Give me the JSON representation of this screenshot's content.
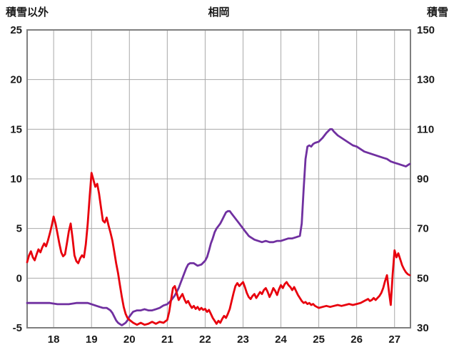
{
  "header": {
    "left_axis_title": "積雪以外",
    "title": "相岡",
    "right_axis_title": "積雪"
  },
  "chart_data": {
    "type": "line",
    "title": "相岡",
    "x_range": [
      17.3,
      27.42
    ],
    "x_ticks": [
      18,
      19,
      20,
      21,
      22,
      23,
      24,
      25,
      26,
      27
    ],
    "grid": true,
    "legend": "none",
    "left_axis": {
      "label": "積雪以外",
      "range": [
        -5,
        25
      ],
      "ticks": [
        25,
        20,
        15,
        10,
        5,
        0,
        -5
      ]
    },
    "right_axis": {
      "label": "積雪",
      "range": [
        30,
        150
      ],
      "ticks": [
        150,
        130,
        110,
        90,
        70,
        50,
        30
      ]
    },
    "colors": {
      "grid": "#a9a9a9",
      "border": "#7f7f7f",
      "text": "#1a1a1a"
    },
    "series": [
      {
        "name": "積雪",
        "axis": "right",
        "color": "#7030a0",
        "points": [
          [
            17.3,
            40
          ],
          [
            17.6,
            40
          ],
          [
            17.9,
            40
          ],
          [
            18.1,
            39.5
          ],
          [
            18.4,
            39.5
          ],
          [
            18.6,
            40
          ],
          [
            18.9,
            40
          ],
          [
            19.0,
            39.5
          ],
          [
            19.1,
            39
          ],
          [
            19.2,
            38.5
          ],
          [
            19.3,
            38
          ],
          [
            19.4,
            38
          ],
          [
            19.5,
            37
          ],
          [
            19.55,
            36
          ],
          [
            19.6,
            34.5
          ],
          [
            19.65,
            33
          ],
          [
            19.7,
            32
          ],
          [
            19.75,
            31.5
          ],
          [
            19.8,
            31
          ],
          [
            19.85,
            31.5
          ],
          [
            19.9,
            32
          ],
          [
            19.95,
            33
          ],
          [
            20.0,
            34.5
          ],
          [
            20.05,
            35.5
          ],
          [
            20.1,
            36.5
          ],
          [
            20.2,
            37
          ],
          [
            20.3,
            37
          ],
          [
            20.4,
            37.5
          ],
          [
            20.5,
            37
          ],
          [
            20.6,
            37
          ],
          [
            20.7,
            37.5
          ],
          [
            20.8,
            38
          ],
          [
            20.9,
            39
          ],
          [
            21.0,
            39.5
          ],
          [
            21.1,
            41
          ],
          [
            21.2,
            43
          ],
          [
            21.3,
            46
          ],
          [
            21.35,
            48
          ],
          [
            21.4,
            50
          ],
          [
            21.45,
            52
          ],
          [
            21.5,
            54
          ],
          [
            21.55,
            55.5
          ],
          [
            21.6,
            56
          ],
          [
            21.7,
            56
          ],
          [
            21.8,
            55
          ],
          [
            21.9,
            55.5
          ],
          [
            22.0,
            57
          ],
          [
            22.05,
            58.5
          ],
          [
            22.1,
            61
          ],
          [
            22.15,
            64
          ],
          [
            22.2,
            66
          ],
          [
            22.25,
            68.5
          ],
          [
            22.3,
            70
          ],
          [
            22.35,
            71
          ],
          [
            22.4,
            72
          ],
          [
            22.45,
            73.5
          ],
          [
            22.5,
            75
          ],
          [
            22.55,
            76.5
          ],
          [
            22.6,
            77
          ],
          [
            22.65,
            77
          ],
          [
            22.7,
            76
          ],
          [
            22.75,
            75
          ],
          [
            22.8,
            74
          ],
          [
            22.85,
            73
          ],
          [
            22.9,
            72
          ],
          [
            22.95,
            71
          ],
          [
            23.0,
            70
          ],
          [
            23.05,
            69
          ],
          [
            23.1,
            68
          ],
          [
            23.15,
            67
          ],
          [
            23.2,
            66.5
          ],
          [
            23.25,
            66
          ],
          [
            23.3,
            65.5
          ],
          [
            23.4,
            65
          ],
          [
            23.5,
            64.5
          ],
          [
            23.6,
            65
          ],
          [
            23.7,
            64.5
          ],
          [
            23.8,
            64.5
          ],
          [
            23.9,
            65
          ],
          [
            24.0,
            65
          ],
          [
            24.1,
            65.5
          ],
          [
            24.2,
            66
          ],
          [
            24.3,
            66
          ],
          [
            24.4,
            66.5
          ],
          [
            24.5,
            67
          ],
          [
            24.55,
            72
          ],
          [
            24.6,
            86
          ],
          [
            24.65,
            98
          ],
          [
            24.7,
            103
          ],
          [
            24.75,
            103.5
          ],
          [
            24.8,
            103
          ],
          [
            24.85,
            104
          ],
          [
            24.9,
            104.5
          ],
          [
            25.0,
            105
          ],
          [
            25.1,
            106.5
          ],
          [
            25.2,
            108.5
          ],
          [
            25.3,
            110
          ],
          [
            25.35,
            110
          ],
          [
            25.4,
            109
          ],
          [
            25.5,
            107.5
          ],
          [
            25.6,
            106.5
          ],
          [
            25.7,
            105.5
          ],
          [
            25.8,
            104.5
          ],
          [
            25.9,
            103.5
          ],
          [
            26.0,
            103
          ],
          [
            26.1,
            102
          ],
          [
            26.2,
            101
          ],
          [
            26.3,
            100.5
          ],
          [
            26.4,
            100
          ],
          [
            26.5,
            99.5
          ],
          [
            26.6,
            99
          ],
          [
            26.7,
            98.5
          ],
          [
            26.8,
            98
          ],
          [
            26.9,
            97
          ],
          [
            27.0,
            96.5
          ],
          [
            27.1,
            96
          ],
          [
            27.2,
            95.5
          ],
          [
            27.3,
            95
          ],
          [
            27.4,
            96
          ]
        ]
      },
      {
        "name": "積雪以外",
        "axis": "left",
        "color": "#e8000d",
        "points": [
          [
            17.3,
            1.6
          ],
          [
            17.35,
            2.3
          ],
          [
            17.4,
            2.7
          ],
          [
            17.45,
            2.1
          ],
          [
            17.5,
            1.8
          ],
          [
            17.55,
            2.4
          ],
          [
            17.6,
            2.9
          ],
          [
            17.65,
            2.6
          ],
          [
            17.7,
            3.1
          ],
          [
            17.75,
            3.5
          ],
          [
            17.8,
            3.2
          ],
          [
            17.85,
            3.8
          ],
          [
            17.9,
            4.5
          ],
          [
            17.95,
            5.3
          ],
          [
            18.0,
            6.2
          ],
          [
            18.05,
            5.5
          ],
          [
            18.1,
            4.5
          ],
          [
            18.15,
            3.5
          ],
          [
            18.2,
            2.6
          ],
          [
            18.25,
            2.2
          ],
          [
            18.3,
            2.4
          ],
          [
            18.35,
            3.5
          ],
          [
            18.4,
            4.7
          ],
          [
            18.45,
            5.5
          ],
          [
            18.5,
            4.0
          ],
          [
            18.55,
            2.3
          ],
          [
            18.6,
            1.7
          ],
          [
            18.65,
            1.5
          ],
          [
            18.7,
            2.0
          ],
          [
            18.75,
            2.3
          ],
          [
            18.8,
            2.1
          ],
          [
            18.85,
            3.4
          ],
          [
            18.9,
            5.5
          ],
          [
            18.95,
            8.2
          ],
          [
            19.0,
            10.6
          ],
          [
            19.05,
            9.9
          ],
          [
            19.1,
            9.2
          ],
          [
            19.15,
            9.5
          ],
          [
            19.2,
            8.5
          ],
          [
            19.25,
            7.1
          ],
          [
            19.3,
            5.8
          ],
          [
            19.35,
            5.6
          ],
          [
            19.4,
            6.1
          ],
          [
            19.45,
            5.3
          ],
          [
            19.5,
            4.6
          ],
          [
            19.55,
            3.8
          ],
          [
            19.6,
            2.7
          ],
          [
            19.65,
            1.5
          ],
          [
            19.7,
            0.5
          ],
          [
            19.75,
            -0.7
          ],
          [
            19.8,
            -1.9
          ],
          [
            19.85,
            -2.9
          ],
          [
            19.9,
            -3.6
          ],
          [
            19.95,
            -4.0
          ],
          [
            20.0,
            -4.2
          ],
          [
            20.1,
            -4.5
          ],
          [
            20.2,
            -4.7
          ],
          [
            20.3,
            -4.5
          ],
          [
            20.4,
            -4.7
          ],
          [
            20.5,
            -4.6
          ],
          [
            20.6,
            -4.4
          ],
          [
            20.7,
            -4.6
          ],
          [
            20.8,
            -4.4
          ],
          [
            20.9,
            -4.5
          ],
          [
            21.0,
            -4.2
          ],
          [
            21.05,
            -3.4
          ],
          [
            21.1,
            -2.2
          ],
          [
            21.15,
            -1.0
          ],
          [
            21.2,
            -0.8
          ],
          [
            21.25,
            -1.5
          ],
          [
            21.3,
            -2.2
          ],
          [
            21.35,
            -1.9
          ],
          [
            21.4,
            -1.6
          ],
          [
            21.45,
            -2.1
          ],
          [
            21.5,
            -2.5
          ],
          [
            21.55,
            -2.3
          ],
          [
            21.6,
            -2.7
          ],
          [
            21.65,
            -3.0
          ],
          [
            21.7,
            -2.8
          ],
          [
            21.75,
            -3.1
          ],
          [
            21.8,
            -2.9
          ],
          [
            21.85,
            -3.2
          ],
          [
            21.9,
            -3.0
          ],
          [
            21.95,
            -3.2
          ],
          [
            22.0,
            -3.1
          ],
          [
            22.05,
            -3.4
          ],
          [
            22.1,
            -3.2
          ],
          [
            22.15,
            -3.6
          ],
          [
            22.2,
            -4.0
          ],
          [
            22.25,
            -4.3
          ],
          [
            22.3,
            -4.6
          ],
          [
            22.35,
            -4.3
          ],
          [
            22.4,
            -4.5
          ],
          [
            22.45,
            -4.1
          ],
          [
            22.5,
            -3.8
          ],
          [
            22.55,
            -4.0
          ],
          [
            22.6,
            -3.6
          ],
          [
            22.65,
            -3.1
          ],
          [
            22.7,
            -2.3
          ],
          [
            22.75,
            -1.5
          ],
          [
            22.8,
            -0.8
          ],
          [
            22.85,
            -0.5
          ],
          [
            22.9,
            -0.8
          ],
          [
            22.95,
            -0.6
          ],
          [
            23.0,
            -0.4
          ],
          [
            23.05,
            -0.9
          ],
          [
            23.1,
            -1.5
          ],
          [
            23.15,
            -1.9
          ],
          [
            23.2,
            -2.1
          ],
          [
            23.25,
            -1.8
          ],
          [
            23.3,
            -1.6
          ],
          [
            23.35,
            -2.0
          ],
          [
            23.4,
            -1.7
          ],
          [
            23.45,
            -1.4
          ],
          [
            23.5,
            -1.6
          ],
          [
            23.55,
            -1.2
          ],
          [
            23.6,
            -1.0
          ],
          [
            23.65,
            -1.4
          ],
          [
            23.7,
            -1.9
          ],
          [
            23.75,
            -1.5
          ],
          [
            23.8,
            -1.0
          ],
          [
            23.85,
            -1.3
          ],
          [
            23.9,
            -1.7
          ],
          [
            23.95,
            -1.1
          ],
          [
            24.0,
            -0.7
          ],
          [
            24.05,
            -1.0
          ],
          [
            24.1,
            -0.6
          ],
          [
            24.15,
            -0.4
          ],
          [
            24.2,
            -0.7
          ],
          [
            24.25,
            -0.9
          ],
          [
            24.3,
            -1.2
          ],
          [
            24.35,
            -0.9
          ],
          [
            24.4,
            -1.3
          ],
          [
            24.45,
            -1.7
          ],
          [
            24.5,
            -2.0
          ],
          [
            24.55,
            -2.3
          ],
          [
            24.6,
            -2.5
          ],
          [
            24.65,
            -2.4
          ],
          [
            24.7,
            -2.6
          ],
          [
            24.75,
            -2.5
          ],
          [
            24.8,
            -2.7
          ],
          [
            24.85,
            -2.6
          ],
          [
            24.9,
            -2.8
          ],
          [
            24.95,
            -2.9
          ],
          [
            25.0,
            -3.0
          ],
          [
            25.1,
            -2.9
          ],
          [
            25.2,
            -2.8
          ],
          [
            25.3,
            -2.9
          ],
          [
            25.4,
            -2.8
          ],
          [
            25.5,
            -2.7
          ],
          [
            25.6,
            -2.8
          ],
          [
            25.7,
            -2.7
          ],
          [
            25.8,
            -2.6
          ],
          [
            25.9,
            -2.7
          ],
          [
            26.0,
            -2.6
          ],
          [
            26.1,
            -2.5
          ],
          [
            26.2,
            -2.3
          ],
          [
            26.3,
            -2.1
          ],
          [
            26.35,
            -2.3
          ],
          [
            26.4,
            -2.2
          ],
          [
            26.45,
            -2.0
          ],
          [
            26.5,
            -2.2
          ],
          [
            26.55,
            -2.0
          ],
          [
            26.6,
            -1.8
          ],
          [
            26.65,
            -1.5
          ],
          [
            26.7,
            -1.0
          ],
          [
            26.75,
            -0.3
          ],
          [
            26.8,
            0.3
          ],
          [
            26.85,
            -1.3
          ],
          [
            26.9,
            -2.7
          ],
          [
            26.95,
            0.4
          ],
          [
            27.0,
            2.8
          ],
          [
            27.05,
            2.1
          ],
          [
            27.1,
            2.5
          ],
          [
            27.15,
            1.9
          ],
          [
            27.2,
            1.3
          ],
          [
            27.25,
            0.9
          ],
          [
            27.3,
            0.6
          ],
          [
            27.35,
            0.4
          ],
          [
            27.4,
            0.3
          ]
        ]
      }
    ]
  }
}
